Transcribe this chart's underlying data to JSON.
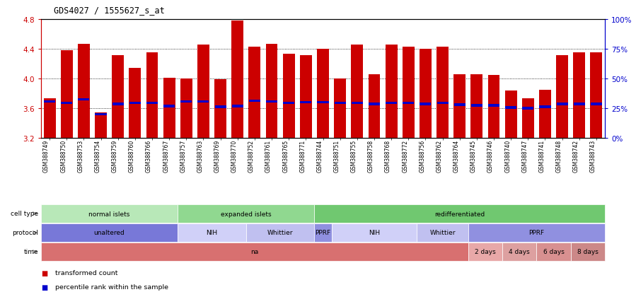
{
  "title": "GDS4027 / 1555627_s_at",
  "samples": [
    "GSM388749",
    "GSM388750",
    "GSM388753",
    "GSM388754",
    "GSM388759",
    "GSM388760",
    "GSM388766",
    "GSM388767",
    "GSM388757",
    "GSM388763",
    "GSM388769",
    "GSM388770",
    "GSM388752",
    "GSM388761",
    "GSM388765",
    "GSM388771",
    "GSM388744",
    "GSM388751",
    "GSM388755",
    "GSM388758",
    "GSM388768",
    "GSM388772",
    "GSM388756",
    "GSM388762",
    "GSM388764",
    "GSM388745",
    "GSM388746",
    "GSM388740",
    "GSM388747",
    "GSM388741",
    "GSM388748",
    "GSM388742",
    "GSM388743"
  ],
  "bar_values": [
    3.73,
    4.38,
    4.47,
    3.54,
    4.31,
    4.14,
    4.35,
    4.01,
    4.0,
    4.46,
    3.99,
    4.78,
    4.43,
    4.47,
    4.33,
    4.31,
    4.4,
    4.0,
    4.46,
    4.06,
    4.46,
    4.43,
    4.4,
    4.43,
    4.06,
    4.06,
    4.05,
    3.84,
    3.73,
    3.85,
    4.31,
    4.35,
    4.35
  ],
  "percentile_values": [
    3.69,
    3.67,
    3.72,
    3.52,
    3.66,
    3.67,
    3.67,
    3.63,
    3.69,
    3.69,
    3.62,
    3.63,
    3.7,
    3.69,
    3.67,
    3.68,
    3.68,
    3.67,
    3.67,
    3.66,
    3.67,
    3.67,
    3.66,
    3.67,
    3.65,
    3.64,
    3.64,
    3.61,
    3.6,
    3.62,
    3.66,
    3.66,
    3.66
  ],
  "ymin": 3.2,
  "ymax": 4.8,
  "yticks": [
    3.2,
    3.6,
    4.0,
    4.4,
    4.8
  ],
  "bar_color": "#cc0000",
  "dot_color": "#0000cc",
  "bg_color": "#ffffff",
  "cell_type_data": [
    {
      "label": "normal islets",
      "start": 0,
      "end": 8,
      "color": "#b8e8b8"
    },
    {
      "label": "expanded islets",
      "start": 8,
      "end": 16,
      "color": "#90d890"
    },
    {
      "label": "redifferentiated",
      "start": 16,
      "end": 33,
      "color": "#70c870"
    }
  ],
  "protocol_data": [
    {
      "label": "unaltered",
      "start": 0,
      "end": 8,
      "color": "#7878d8"
    },
    {
      "label": "NIH",
      "start": 8,
      "end": 12,
      "color": "#d0d0f8"
    },
    {
      "label": "Whittier",
      "start": 12,
      "end": 16,
      "color": "#c0c0f0"
    },
    {
      "label": "PPRF",
      "start": 16,
      "end": 17,
      "color": "#9090e0"
    },
    {
      "label": "NIH",
      "start": 17,
      "end": 22,
      "color": "#d0d0f8"
    },
    {
      "label": "Whittier",
      "start": 22,
      "end": 25,
      "color": "#c0c0f0"
    },
    {
      "label": "PPRF",
      "start": 25,
      "end": 33,
      "color": "#9090e0"
    }
  ],
  "time_data": [
    {
      "label": "na",
      "start": 0,
      "end": 25,
      "color": "#d87070"
    },
    {
      "label": "2 days",
      "start": 25,
      "end": 27,
      "color": "#e8a8a8"
    },
    {
      "label": "4 days",
      "start": 27,
      "end": 29,
      "color": "#dda0a0"
    },
    {
      "label": "6 days",
      "start": 29,
      "end": 31,
      "color": "#d89090"
    },
    {
      "label": "8 days",
      "start": 31,
      "end": 33,
      "color": "#cc8888"
    }
  ],
  "row_labels": [
    "cell type",
    "protocol",
    "time"
  ],
  "legend_items": [
    {
      "label": "transformed count",
      "color": "#cc0000"
    },
    {
      "label": "percentile rank within the sample",
      "color": "#0000cc"
    }
  ]
}
